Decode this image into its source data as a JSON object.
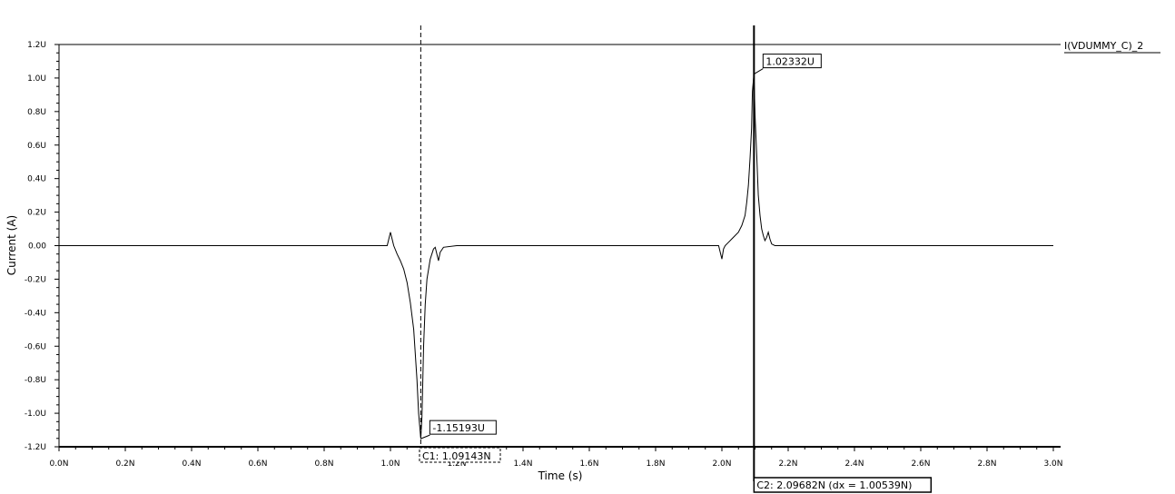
{
  "chart_data": {
    "type": "line",
    "title": "",
    "xlabel": "Time (s)",
    "ylabel": "Current (A)",
    "xlim": [
      0,
      3.0
    ],
    "ylim": [
      -1.2,
      1.2
    ],
    "x_unit_scale": "N",
    "x_ticks": [
      "0.0N",
      "0.2N",
      "0.4N",
      "0.6N",
      "0.8N",
      "1.0N",
      "1.2N",
      "1.4N",
      "1.6N",
      "1.8N",
      "2.0N",
      "2.2N",
      "2.4N",
      "2.6N",
      "2.8N",
      "3.0N"
    ],
    "y_ticks": [
      "1.2U",
      "1.0U",
      "0.8U",
      "0.6U",
      "0.4U",
      "0.2U",
      "0.00",
      "-0.2U",
      "-0.4U",
      "-0.6U",
      "-0.8U",
      "-1.0U",
      "-1.2U"
    ],
    "grid": false,
    "legend": {
      "position": "top-right",
      "entries": [
        "I(VDUMMY_C)_2"
      ]
    },
    "series": [
      {
        "name": "I(VDUMMY_C)_2",
        "color": "#000000",
        "x": [
          0.0,
          0.99,
          1.0,
          1.005,
          1.01,
          1.02,
          1.03,
          1.04,
          1.05,
          1.06,
          1.07,
          1.08,
          1.085,
          1.0914,
          1.095,
          1.1,
          1.105,
          1.11,
          1.12,
          1.13,
          1.135,
          1.14,
          1.145,
          1.15,
          1.16,
          1.2,
          1.99,
          2.0,
          2.005,
          2.01,
          2.02,
          2.03,
          2.04,
          2.05,
          2.06,
          2.07,
          2.075,
          2.08,
          2.085,
          2.0895,
          2.092,
          2.0968,
          2.1,
          2.105,
          2.11,
          2.115,
          2.12,
          2.125,
          2.13,
          2.135,
          2.14,
          2.145,
          2.15,
          2.16,
          2.2,
          3.0
        ],
        "y": [
          0.0,
          0.0,
          0.08,
          0.04,
          0.0,
          -0.05,
          -0.09,
          -0.14,
          -0.22,
          -0.34,
          -0.5,
          -0.8,
          -1.0,
          -1.15193,
          -1.02,
          -0.6,
          -0.35,
          -0.2,
          -0.08,
          -0.02,
          -0.01,
          -0.05,
          -0.09,
          -0.04,
          -0.01,
          0.0,
          0.0,
          -0.08,
          -0.02,
          0.0,
          0.02,
          0.04,
          0.06,
          0.08,
          0.12,
          0.18,
          0.26,
          0.36,
          0.52,
          0.7,
          0.92,
          1.02332,
          0.78,
          0.55,
          0.3,
          0.18,
          0.1,
          0.06,
          0.03,
          0.05,
          0.08,
          0.04,
          0.01,
          0.0,
          0.0,
          0.0
        ]
      }
    ],
    "markers": [
      {
        "x": 1.0914,
        "y": -1.15193,
        "label": "-1.15193U"
      },
      {
        "x": 2.0968,
        "y": 1.02332,
        "label": "1.02332U"
      }
    ],
    "cursors": [
      {
        "name": "C1",
        "x": 1.09143,
        "label": "C1: 1.09143N",
        "style": "dashed"
      },
      {
        "name": "C2",
        "x": 2.09682,
        "label": "C2: 2.09682N (dx = 1.00539N)",
        "style": "solid"
      }
    ]
  }
}
